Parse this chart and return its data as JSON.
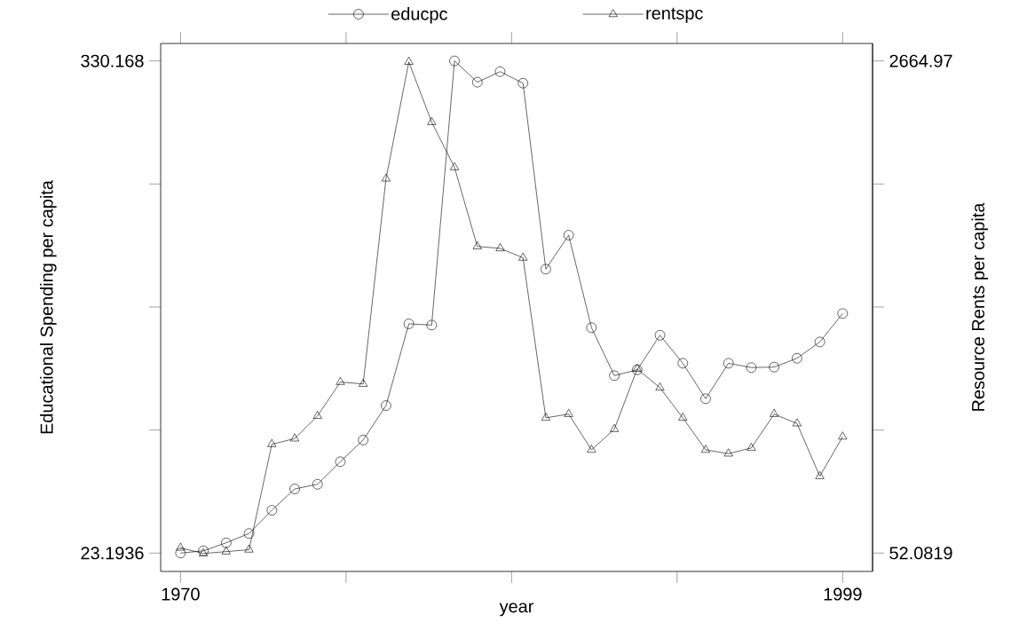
{
  "chart_data": {
    "type": "line",
    "xlabel": "year",
    "ylabel": "Educational Spending per capita",
    "y2label": "Resource Rents per capita",
    "x": [
      1970,
      1971,
      1972,
      1973,
      1974,
      1975,
      1976,
      1977,
      1978,
      1979,
      1980,
      1981,
      1982,
      1983,
      1984,
      1985,
      1986,
      1987,
      1988,
      1989,
      1990,
      1991,
      1992,
      1993,
      1994,
      1995,
      1996,
      1997,
      1998,
      1999
    ],
    "xlim": [
      1969.13,
      2000.31
    ],
    "xticks": [
      1970,
      {
        "value": 1977.25,
        "label": null
      },
      {
        "value": 1984.5,
        "label": null
      },
      {
        "value": 1991.75,
        "label": null
      },
      1999
    ],
    "ylim": [
      11.74,
      341.07
    ],
    "yticks": [
      23.1936,
      {
        "value": 99.937,
        "label": null
      },
      {
        "value": 176.681,
        "label": null
      },
      {
        "value": 253.424,
        "label": null
      },
      330.168
    ],
    "y2lim": [
      -45.4,
      2757.8
    ],
    "y2ticks": [
      52.0819,
      {
        "value": 705.3,
        "label": null
      },
      {
        "value": 1358.53,
        "label": null
      },
      {
        "value": 2011.75,
        "label": null
      },
      2664.97
    ],
    "legend": "top",
    "series": [
      {
        "name": "educpc",
        "color": "#000000",
        "marker": "circle",
        "values": [
          23.2,
          24.6,
          29.6,
          35.4,
          49.9,
          63.2,
          66.1,
          80.2,
          93.7,
          115.2,
          166.2,
          165.4,
          330.2,
          316.9,
          323.5,
          316.3,
          200.3,
          221.5,
          163.8,
          133.9,
          137.5,
          159.1,
          141.6,
          119.5,
          141.6,
          138.9,
          139.2,
          144.7,
          154.9,
          172.6
        ]
      },
      {
        "name": "rentspc",
        "color": "#000000",
        "marker": "triangle",
        "axis": "y2",
        "values": [
          80,
          50,
          60,
          70,
          630,
          660,
          780,
          960,
          950,
          2040,
          2660,
          2340,
          2100,
          1680,
          1670,
          1620,
          770,
          790,
          600,
          710,
          1030,
          930,
          770,
          600,
          580,
          610,
          790,
          740,
          460,
          670
        ]
      }
    ]
  }
}
